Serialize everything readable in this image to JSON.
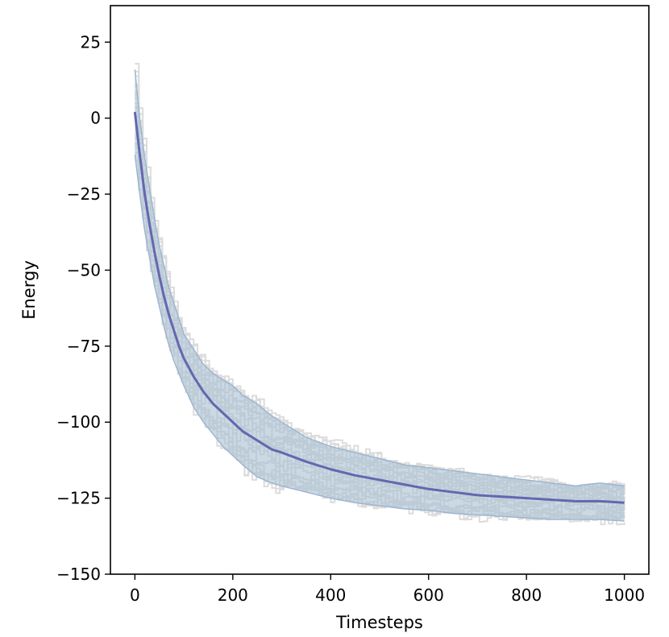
{
  "chart_data": {
    "type": "line",
    "title": "",
    "xlabel": "Timesteps",
    "ylabel": "Energy",
    "xlim": [
      -50,
      1050
    ],
    "ylim": [
      -150,
      37
    ],
    "xticks": [
      0,
      200,
      400,
      600,
      800,
      1000
    ],
    "xtick_labels": [
      "0",
      "200",
      "400",
      "600",
      "800",
      "1000"
    ],
    "yticks": [
      25,
      0,
      -25,
      -50,
      -75,
      -100,
      -125,
      -150
    ],
    "ytick_labels": [
      "25",
      "0",
      "−25",
      "−50",
      "−75",
      "−100",
      "−125",
      "−150"
    ],
    "grid": false,
    "legend": "none",
    "colors": {
      "mean": "#6466b0",
      "band_fill": "#a9bfd2",
      "band_edge": "#9db6d0",
      "runs": "#dcdcdc"
    },
    "series": [
      {
        "role": "mean",
        "x": [
          0,
          10,
          20,
          30,
          40,
          50,
          60,
          70,
          80,
          90,
          100,
          120,
          140,
          160,
          180,
          200,
          220,
          250,
          280,
          300,
          350,
          400,
          450,
          500,
          550,
          600,
          650,
          700,
          750,
          800,
          850,
          900,
          950,
          1000
        ],
        "y": [
          2,
          -12,
          -25,
          -35,
          -44,
          -52,
          -59,
          -65,
          -70,
          -75,
          -79,
          -85,
          -90,
          -94,
          -97,
          -100,
          -103,
          -106,
          -109,
          -110,
          -113,
          -115.5,
          -117.5,
          -119,
          -120.5,
          -122,
          -123,
          -124,
          -124.5,
          -125,
          -125.5,
          -126,
          -126,
          -126.5
        ]
      },
      {
        "role": "upper-band",
        "x": [
          0,
          10,
          20,
          30,
          40,
          50,
          60,
          70,
          80,
          90,
          100,
          120,
          140,
          160,
          180,
          200,
          220,
          250,
          280,
          300,
          350,
          400,
          450,
          500,
          550,
          600,
          650,
          700,
          750,
          800,
          850,
          900,
          950,
          1000
        ],
        "y": [
          16,
          0,
          -13,
          -23,
          -33,
          -42,
          -49,
          -56,
          -61,
          -66,
          -71,
          -76,
          -81,
          -84,
          -86,
          -88,
          -91,
          -94,
          -98,
          -100,
          -105,
          -108,
          -110,
          -112,
          -114,
          -115,
          -116,
          -117,
          -118,
          -119,
          -120,
          -121,
          -120,
          -121
        ]
      },
      {
        "role": "lower-band",
        "x": [
          0,
          10,
          20,
          30,
          40,
          50,
          60,
          70,
          80,
          90,
          100,
          120,
          140,
          160,
          180,
          200,
          220,
          250,
          280,
          300,
          350,
          400,
          450,
          500,
          550,
          600,
          650,
          700,
          750,
          800,
          850,
          900,
          950,
          1000
        ],
        "y": [
          -12,
          -25,
          -37,
          -46,
          -55,
          -62,
          -69,
          -75,
          -80,
          -84,
          -88,
          -95,
          -100,
          -104,
          -108,
          -111,
          -114,
          -118,
          -120,
          -121,
          -123,
          -125,
          -126.5,
          -127.5,
          -128.5,
          -129,
          -130,
          -130.5,
          -131,
          -131.5,
          -132,
          -132,
          -132,
          -132.5
        ]
      }
    ]
  }
}
